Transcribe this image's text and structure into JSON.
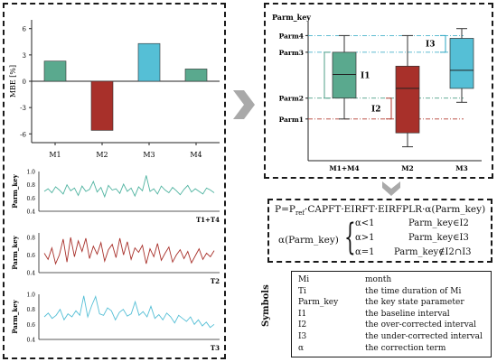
{
  "colors": {
    "green": "#5aa98e",
    "red": "#a8302a",
    "blue": "#55bfd6",
    "teal": "#4fb3a0",
    "dark": "#1a1a1a"
  },
  "chart_data": [
    {
      "type": "bar",
      "ylabel": "MBE [%]",
      "categories": [
        "M1",
        "M2",
        "M3",
        "M4"
      ],
      "values": [
        2.3,
        -5.6,
        4.3,
        1.4
      ],
      "yticks": [
        "6",
        "3",
        "0",
        "-3",
        "-6"
      ],
      "ylim": [
        -7,
        7
      ],
      "colors": [
        "#5aa98e",
        "#a8302a",
        "#55bfd6",
        "#5aa98e"
      ]
    },
    {
      "type": "line",
      "ylabel": "Parm_key",
      "label": "T1+T4",
      "yticks": [
        "1.0",
        "0.8",
        "0.6",
        "0.4"
      ],
      "ylim": [
        0.4,
        1.0
      ],
      "color": "#4fb3a0",
      "values": [
        0.7,
        0.74,
        0.68,
        0.77,
        0.72,
        0.66,
        0.8,
        0.71,
        0.75,
        0.64,
        0.78,
        0.7,
        0.73,
        0.85,
        0.69,
        0.76,
        0.62,
        0.79,
        0.72,
        0.74,
        0.67,
        0.81,
        0.7,
        0.75,
        0.63,
        0.77,
        0.71,
        0.94,
        0.7,
        0.74,
        0.66,
        0.78,
        0.72,
        0.68,
        0.76,
        0.71,
        0.65,
        0.73,
        0.79,
        0.69,
        0.74,
        0.7,
        0.66,
        0.75,
        0.72,
        0.68
      ]
    },
    {
      "type": "line",
      "ylabel": "Parm_key",
      "label": "T2",
      "yticks": [
        "0.8",
        "0.6",
        "0.4"
      ],
      "ylim": [
        0.4,
        0.85
      ],
      "color": "#a8302a",
      "values": [
        0.62,
        0.55,
        0.68,
        0.5,
        0.6,
        0.78,
        0.52,
        0.8,
        0.58,
        0.76,
        0.64,
        0.79,
        0.56,
        0.7,
        0.61,
        0.74,
        0.53,
        0.66,
        0.72,
        0.57,
        0.79,
        0.6,
        0.75,
        0.55,
        0.68,
        0.63,
        0.71,
        0.5,
        0.67,
        0.58,
        0.73,
        0.54,
        0.62,
        0.69,
        0.52,
        0.6,
        0.66,
        0.56,
        0.64,
        0.51,
        0.59,
        0.67,
        0.55,
        0.62,
        0.58,
        0.65
      ]
    },
    {
      "type": "line",
      "ylabel": "Parm_key",
      "label": "T3",
      "yticks": [
        "1.0",
        "0.8",
        "0.6",
        "0.4"
      ],
      "ylim": [
        0.4,
        1.0
      ],
      "color": "#55bfd6",
      "values": [
        0.7,
        0.75,
        0.68,
        0.72,
        0.8,
        0.66,
        0.74,
        0.7,
        0.78,
        0.72,
        0.98,
        0.7,
        0.85,
        0.97,
        0.74,
        0.72,
        0.82,
        0.78,
        0.66,
        0.76,
        0.8,
        0.71,
        0.74,
        0.9,
        0.72,
        0.77,
        0.7,
        0.84,
        0.68,
        0.73,
        0.66,
        0.75,
        0.7,
        0.62,
        0.72,
        0.68,
        0.64,
        0.7,
        0.6,
        0.66,
        0.58,
        0.63,
        0.56,
        0.6
      ]
    },
    {
      "type": "box",
      "ylabel": "Parm_key",
      "categories": [
        "M1+M4",
        "M2",
        "M3"
      ],
      "colors": [
        "#5aa98e",
        "#a8302a",
        "#55bfd6"
      ],
      "ylim": [
        0,
        1
      ],
      "boxes": [
        {
          "min": 0.3,
          "q1": 0.45,
          "median": 0.62,
          "q3": 0.78,
          "max": 0.9
        },
        {
          "min": 0.1,
          "q1": 0.2,
          "median": 0.52,
          "q3": 0.68,
          "max": 0.9
        },
        {
          "min": 0.42,
          "q1": 0.52,
          "median": 0.65,
          "q3": 0.88,
          "max": 0.95
        }
      ],
      "levels": [
        {
          "name": "Parm4",
          "value": 0.9
        },
        {
          "name": "Parm3",
          "value": 0.78
        },
        {
          "name": "Parm2",
          "value": 0.45
        },
        {
          "name": "Parm1",
          "value": 0.3
        }
      ],
      "intervals": [
        {
          "name": "I1",
          "from": 0.45,
          "to": 0.78
        },
        {
          "name": "I2",
          "from": 0.3,
          "to": 0.45
        },
        {
          "name": "I3",
          "from": 0.78,
          "to": 0.9
        }
      ]
    }
  ],
  "boxplot": {
    "title": "Parm_key",
    "levels": [
      "Parm4",
      "Parm3",
      "Parm2",
      "Parm1"
    ],
    "intervals": [
      "I1",
      "I2",
      "I3"
    ],
    "categories": [
      "M1+M4",
      "M2",
      "M3"
    ]
  },
  "equation": {
    "line1_a": "P=P",
    "line1_sub": "ref",
    "line1_b": "·CAPFT·EIRFT·EIRFPLR·α(Parm_key)",
    "lhs": "α(Parm_key)",
    "cases": [
      {
        "cond": "α<1",
        "range": "Parm_key∈I2"
      },
      {
        "cond": "α>1",
        "range": "Parm_key∈I3"
      },
      {
        "cond": "α=1",
        "range": "Parm_key∉I2∩I3"
      }
    ]
  },
  "symbols": {
    "title": "Symbols",
    "rows": [
      {
        "sym": "Mi",
        "desc": "month"
      },
      {
        "sym": "Ti",
        "desc": "the time duration of Mi"
      },
      {
        "sym": "Parm_key",
        "desc": "the key state parameter"
      },
      {
        "sym": "I1",
        "desc": "the baseline interval"
      },
      {
        "sym": "I2",
        "desc": "the over-corrected interval"
      },
      {
        "sym": "I3",
        "desc": "the under-corrected interval"
      },
      {
        "sym": "α",
        "desc": "the correction term"
      }
    ]
  }
}
